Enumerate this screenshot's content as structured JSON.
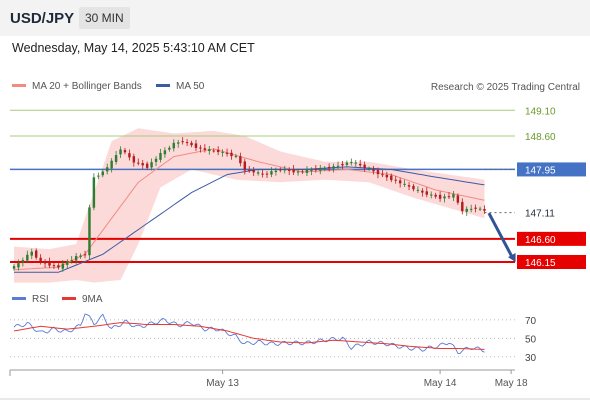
{
  "header": {
    "pair": "USD/JPY",
    "timeframe": "30 MIN"
  },
  "datetime": "Wednesday, May 14, 2025 5:43:10 AM CET",
  "credit": "Research © 2025 Trading Central",
  "colors": {
    "candle_up": "#2e7d32",
    "candle_down": "#b71c1c",
    "band_fill": "#fbd3d3",
    "ma20": "#f28b82",
    "ma50": "#3b5ba5",
    "support": "#e60000",
    "resistance": "#a8cc7a",
    "pivot": "#4472c4",
    "last": "#1e2a3a",
    "arrow": "#2f5597",
    "rsi": "#5b7bd5",
    "rsi_ma": "#e53935"
  },
  "chart_data": [
    {
      "type": "candlestick",
      "name": "price",
      "legend": [
        {
          "label": "MA 20 + Bollinger Bands",
          "color": "#f28b82"
        },
        {
          "label": "MA 50",
          "color": "#3b5ba5"
        }
      ],
      "ylim": [
        145.8,
        149.3
      ],
      "xlim": [
        0,
        114
      ],
      "x_ticks": [
        {
          "label": "May 13",
          "x": 47
        },
        {
          "label": "May 14",
          "x": 96
        },
        {
          "label": "May 18",
          "x": 112
        }
      ],
      "levels": [
        {
          "value": 149.1,
          "label": "149.10",
          "kind": "resistance"
        },
        {
          "value": 148.6,
          "label": "148.60",
          "kind": "resistance"
        },
        {
          "value": 147.95,
          "label": "147.95",
          "kind": "pivot"
        },
        {
          "value": 147.11,
          "label": "147.11",
          "kind": "last"
        },
        {
          "value": 146.6,
          "label": "146.60",
          "kind": "support"
        },
        {
          "value": 146.15,
          "label": "146.15",
          "kind": "support"
        }
      ],
      "anchors": [
        [
          0,
          146.05
        ],
        [
          4,
          146.35
        ],
        [
          6,
          146.15
        ],
        [
          10,
          146.05
        ],
        [
          14,
          146.25
        ],
        [
          16,
          146.3
        ],
        [
          17,
          147.2
        ],
        [
          18,
          147.8
        ],
        [
          20,
          147.9
        ],
        [
          22,
          148.1
        ],
        [
          24,
          148.35
        ],
        [
          27,
          148.1
        ],
        [
          30,
          148.0
        ],
        [
          33,
          148.25
        ],
        [
          36,
          148.45
        ],
        [
          38,
          148.5
        ],
        [
          42,
          148.35
        ],
        [
          46,
          148.3
        ],
        [
          50,
          148.2
        ],
        [
          52,
          147.95
        ],
        [
          56,
          147.85
        ],
        [
          60,
          147.95
        ],
        [
          64,
          147.9
        ],
        [
          68,
          147.95
        ],
        [
          72,
          148.0
        ],
        [
          76,
          148.1
        ],
        [
          80,
          147.95
        ],
        [
          84,
          147.8
        ],
        [
          88,
          147.65
        ],
        [
          92,
          147.5
        ],
        [
          96,
          147.4
        ],
        [
          99,
          147.45
        ],
        [
          101,
          147.15
        ],
        [
          104,
          147.2
        ],
        [
          106,
          147.15
        ]
      ],
      "ma20_anchors": [
        [
          0,
          146.0
        ],
        [
          10,
          146.05
        ],
        [
          16,
          146.3
        ],
        [
          22,
          147.0
        ],
        [
          28,
          147.7
        ],
        [
          36,
          148.2
        ],
        [
          45,
          148.35
        ],
        [
          55,
          148.1
        ],
        [
          65,
          147.9
        ],
        [
          75,
          147.95
        ],
        [
          85,
          147.85
        ],
        [
          95,
          147.55
        ],
        [
          106,
          147.35
        ]
      ],
      "ma50_anchors": [
        [
          0,
          145.95
        ],
        [
          10,
          145.95
        ],
        [
          20,
          146.3
        ],
        [
          30,
          146.9
        ],
        [
          40,
          147.5
        ],
        [
          48,
          147.85
        ],
        [
          55,
          147.95
        ],
        [
          65,
          147.95
        ],
        [
          75,
          148.0
        ],
        [
          85,
          147.95
        ],
        [
          95,
          147.8
        ],
        [
          106,
          147.65
        ]
      ],
      "band_upper_anchors": [
        [
          0,
          146.45
        ],
        [
          8,
          146.4
        ],
        [
          14,
          146.5
        ],
        [
          18,
          147.5
        ],
        [
          22,
          148.5
        ],
        [
          28,
          148.75
        ],
        [
          36,
          148.65
        ],
        [
          45,
          148.7
        ],
        [
          52,
          148.6
        ],
        [
          60,
          148.3
        ],
        [
          70,
          148.1
        ],
        [
          80,
          148.1
        ],
        [
          90,
          147.95
        ],
        [
          106,
          147.75
        ]
      ],
      "band_lower_anchors": [
        [
          0,
          145.75
        ],
        [
          8,
          145.75
        ],
        [
          14,
          145.8
        ],
        [
          18,
          145.75
        ],
        [
          24,
          145.8
        ],
        [
          28,
          146.5
        ],
        [
          33,
          147.6
        ],
        [
          40,
          147.95
        ],
        [
          50,
          147.75
        ],
        [
          60,
          147.7
        ],
        [
          70,
          147.75
        ],
        [
          80,
          147.7
        ],
        [
          90,
          147.4
        ],
        [
          106,
          147.0
        ]
      ],
      "forecast_arrow": [
        [
          107,
          147.1
        ],
        [
          113,
          146.15
        ]
      ]
    },
    {
      "type": "line",
      "name": "rsi",
      "legend": [
        {
          "label": "RSI",
          "color": "#5b7bd5"
        },
        {
          "label": "9MA",
          "color": "#e53935"
        }
      ],
      "ylim": [
        20,
        85
      ],
      "xlim": [
        0,
        114
      ],
      "y_ticks": [
        70,
        50,
        30
      ],
      "rsi_anchors": [
        [
          0,
          62
        ],
        [
          3,
          66
        ],
        [
          6,
          56
        ],
        [
          9,
          60
        ],
        [
          12,
          57
        ],
        [
          15,
          64
        ],
        [
          16,
          78
        ],
        [
          18,
          66
        ],
        [
          20,
          74
        ],
        [
          22,
          60
        ],
        [
          25,
          68
        ],
        [
          28,
          62
        ],
        [
          31,
          66
        ],
        [
          34,
          70
        ],
        [
          37,
          64
        ],
        [
          40,
          67
        ],
        [
          43,
          60
        ],
        [
          46,
          60
        ],
        [
          50,
          52
        ],
        [
          52,
          44
        ],
        [
          55,
          46
        ],
        [
          58,
          44
        ],
        [
          62,
          45
        ],
        [
          66,
          45
        ],
        [
          70,
          48
        ],
        [
          74,
          50
        ],
        [
          76,
          40
        ],
        [
          80,
          46
        ],
        [
          84,
          44
        ],
        [
          88,
          40
        ],
        [
          92,
          38
        ],
        [
          96,
          42
        ],
        [
          98,
          46
        ],
        [
          100,
          35
        ],
        [
          103,
          40
        ],
        [
          106,
          37
        ]
      ],
      "ma9_anchors": [
        [
          0,
          58
        ],
        [
          6,
          63
        ],
        [
          12,
          60
        ],
        [
          18,
          63
        ],
        [
          24,
          67
        ],
        [
          30,
          65
        ],
        [
          36,
          65
        ],
        [
          42,
          63
        ],
        [
          48,
          58
        ],
        [
          54,
          50
        ],
        [
          60,
          46
        ],
        [
          66,
          45
        ],
        [
          72,
          48
        ],
        [
          78,
          46
        ],
        [
          84,
          44
        ],
        [
          90,
          41
        ],
        [
          96,
          39
        ],
        [
          100,
          39
        ],
        [
          106,
          38
        ]
      ]
    }
  ]
}
